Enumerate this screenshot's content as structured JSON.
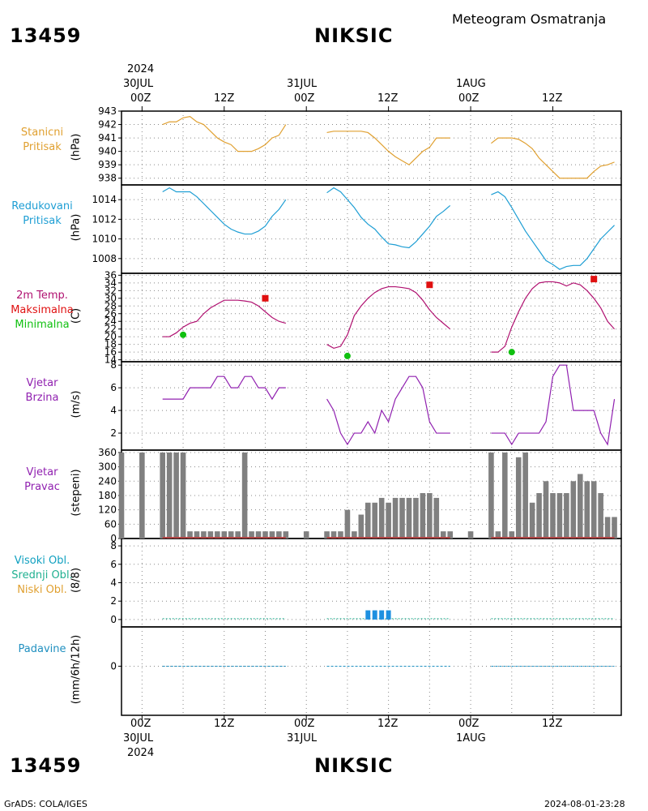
{
  "header": {
    "station_id": "13459",
    "station_name": "NIKSIC",
    "title": "Meteogram Osmatranja"
  },
  "footer": {
    "station_id": "13459",
    "station_name": "NIKSIC",
    "credit": "GrADS: COLA/IGES",
    "timestamp": "2024-08-01-23:28"
  },
  "time_axis": {
    "top_year": "2024",
    "bottom_year": "2024",
    "day_labels": [
      "30JUL",
      "31JUL",
      "1AUG"
    ],
    "hour_labels": [
      "00Z",
      "12Z",
      "00Z",
      "12Z",
      "00Z",
      "12Z"
    ],
    "x_range_hours": [
      -3,
      70
    ]
  },
  "colors": {
    "pressure_station": "#e0a030",
    "pressure_reduced": "#1e9ed4",
    "temperature": "#b01070",
    "tmax": "#e01010",
    "tmin": "#10c010",
    "wind": "#9020b0",
    "wind_dir_bar": "#808080",
    "wind_dir_base": "#c03030",
    "cloud_high": "#10a0c0",
    "cloud_mid": "#20b090",
    "cloud_low": "#e0a030",
    "cloud_bar": "#1e90e0",
    "precip": "#2090c0"
  },
  "panels": {
    "station_pressure": {
      "label1": "Stanicni",
      "label2": "Pritisak",
      "unit": "(hPa)"
    },
    "reduced_pressure": {
      "label1": "Redukovani",
      "label2": "Pritisak",
      "unit": "(hPa)"
    },
    "temperature": {
      "label1": "2m Temp.",
      "label2": "Maksimalna",
      "label3": "Minimalna",
      "unit": "(C)"
    },
    "wind_speed": {
      "label1": "Vjetar",
      "label2": "Brzina",
      "unit": "(m/s)"
    },
    "wind_direction": {
      "label1": "Vjetar",
      "label2": "Pravac",
      "unit": "(stepeni)"
    },
    "clouds": {
      "label1": "Visoki Obl.",
      "label2": "Srednji Obl.",
      "label3": "Niski Obl.",
      "unit": "(8/8)"
    },
    "precip": {
      "label1": "Padavine",
      "unit": "(mm/6h/12h)"
    }
  },
  "chart_data": [
    {
      "type": "line",
      "name": "station_pressure",
      "ylim": [
        937.5,
        943
      ],
      "yticks": [
        938,
        939,
        940,
        941,
        942,
        943
      ],
      "segments": [
        {
          "x": [
            3,
            4,
            5,
            6,
            7,
            8,
            9,
            10,
            11,
            12,
            13,
            14,
            15,
            16,
            17,
            18,
            19,
            20,
            21
          ],
          "y": [
            942,
            942.2,
            942.2,
            942.5,
            942.6,
            942.2,
            942,
            941.5,
            941,
            940.7,
            940.5,
            940,
            940,
            940,
            940.2,
            940.5,
            941,
            941.2,
            942
          ]
        },
        {
          "x": [
            27,
            28,
            29,
            30,
            31,
            32,
            33,
            34,
            35,
            36,
            37,
            38,
            39,
            40,
            41,
            42,
            43,
            44,
            45
          ],
          "y": [
            941.4,
            941.5,
            941.5,
            941.5,
            941.5,
            941.5,
            941.4,
            941,
            940.5,
            940,
            939.6,
            939.3,
            939,
            939.5,
            940,
            940.3,
            941,
            941,
            941
          ]
        },
        {
          "x": [
            51,
            52,
            53,
            54,
            55,
            56,
            57,
            58,
            59,
            60,
            61,
            62,
            63,
            64,
            65,
            66,
            67,
            68,
            69
          ],
          "y": [
            940.6,
            941,
            941,
            941,
            940.9,
            940.6,
            940.2,
            939.5,
            939,
            938.5,
            938,
            938,
            938,
            938,
            938,
            938.5,
            938.9,
            939,
            939.2
          ]
        }
      ]
    },
    {
      "type": "line",
      "name": "reduced_pressure",
      "ylim": [
        1006.5,
        1015.5
      ],
      "yticks": [
        1008,
        1010,
        1012,
        1014
      ],
      "segments": [
        {
          "x": [
            3,
            4,
            5,
            6,
            7,
            8,
            9,
            10,
            11,
            12,
            13,
            14,
            15,
            16,
            17,
            18,
            19,
            20,
            21
          ],
          "y": [
            1014.8,
            1015.2,
            1014.8,
            1014.8,
            1014.8,
            1014.3,
            1013.6,
            1012.9,
            1012.2,
            1011.5,
            1011,
            1010.7,
            1010.5,
            1010.5,
            1010.8,
            1011.3,
            1012.3,
            1013,
            1014
          ]
        },
        {
          "x": [
            27,
            28,
            29,
            30,
            31,
            32,
            33,
            34,
            35,
            36,
            37,
            38,
            39,
            40,
            41,
            42,
            43,
            44,
            45
          ],
          "y": [
            1014.7,
            1015.2,
            1014.8,
            1014,
            1013.2,
            1012.2,
            1011.5,
            1011,
            1010.2,
            1009.5,
            1009.4,
            1009.2,
            1009.1,
            1009.7,
            1010.5,
            1011.3,
            1012.3,
            1012.8,
            1013.4
          ]
        },
        {
          "x": [
            51,
            52,
            53,
            54,
            55,
            56,
            57,
            58,
            59,
            60,
            61,
            62,
            63,
            64,
            65,
            66,
            67,
            68,
            69
          ],
          "y": [
            1014.5,
            1014.8,
            1014.3,
            1013.2,
            1012,
            1010.8,
            1009.8,
            1008.8,
            1007.8,
            1007.4,
            1006.9,
            1007.2,
            1007.3,
            1007.3,
            1008,
            1009,
            1010,
            1010.7,
            1011.4
          ]
        }
      ]
    },
    {
      "type": "line",
      "name": "temperature",
      "ylim": [
        13.5,
        36.5
      ],
      "yticks": [
        14,
        16,
        18,
        20,
        22,
        24,
        26,
        28,
        30,
        32,
        34,
        36
      ],
      "segments": [
        {
          "x": [
            3,
            4,
            5,
            6,
            7,
            8,
            9,
            10,
            11,
            12,
            13,
            14,
            15,
            16,
            17,
            18,
            19,
            20,
            21
          ],
          "y": [
            20,
            20,
            21,
            22.5,
            23.5,
            24,
            26,
            27.5,
            28.5,
            29.5,
            29.5,
            29.5,
            29.3,
            29,
            28,
            26.5,
            25,
            24,
            23.5
          ]
        },
        {
          "x": [
            27,
            28,
            29,
            30,
            31,
            32,
            33,
            34,
            35,
            36,
            37,
            38,
            39,
            40,
            41,
            42,
            43,
            44,
            45
          ],
          "y": [
            18,
            17,
            17.5,
            20.5,
            25.5,
            28,
            30,
            31.5,
            32.5,
            33,
            33,
            32.8,
            32.5,
            31.5,
            29.5,
            27,
            25,
            23.5,
            22
          ]
        },
        {
          "x": [
            51,
            52,
            53,
            54,
            55,
            56,
            57,
            58,
            59,
            60,
            61,
            62,
            63,
            64,
            65,
            66,
            67,
            68,
            69
          ],
          "y": [
            16,
            16,
            17.5,
            22.5,
            26.5,
            30,
            32.5,
            34,
            34.3,
            34.3,
            34,
            33.2,
            34,
            33.5,
            32,
            30,
            27.5,
            24,
            22
          ]
        }
      ],
      "tmax": {
        "x": [
          18,
          42,
          66
        ],
        "y": [
          30,
          33.5,
          35
        ]
      },
      "tmin": {
        "x": [
          6,
          30,
          54
        ],
        "y": [
          20.5,
          15,
          16
        ]
      }
    },
    {
      "type": "line",
      "name": "wind_speed",
      "ylim": [
        0.5,
        8.3
      ],
      "yticks": [
        2,
        4,
        6,
        8
      ],
      "segments": [
        {
          "x": [
            3,
            4,
            5,
            6,
            7,
            8,
            9,
            10,
            11,
            12,
            13,
            14,
            15,
            16,
            17,
            18,
            19,
            20,
            21
          ],
          "y": [
            5,
            5,
            5,
            5,
            6,
            6,
            6,
            6,
            7,
            7,
            6,
            6,
            7,
            7,
            6,
            6,
            5,
            6,
            6
          ]
        },
        {
          "x": [
            27,
            28,
            29,
            30,
            31,
            32,
            33,
            34,
            35,
            36,
            37,
            38,
            39,
            40,
            41,
            42,
            43,
            44,
            45
          ],
          "y": [
            5,
            4,
            2,
            1,
            2,
            2,
            3,
            2,
            4,
            3,
            5,
            6,
            7,
            7,
            6,
            3,
            2,
            2,
            2
          ]
        },
        {
          "x": [
            51,
            52,
            53,
            54,
            55,
            56,
            57,
            58,
            59,
            60,
            61,
            62,
            63,
            64,
            65,
            66,
            67,
            68,
            69
          ],
          "y": [
            2,
            2,
            2,
            1,
            2,
            2,
            2,
            2,
            3,
            7,
            8,
            8,
            4,
            4,
            4,
            4,
            2,
            1,
            5
          ]
        }
      ]
    },
    {
      "type": "bar",
      "name": "wind_direction",
      "ylim": [
        0,
        370
      ],
      "yticks": [
        0,
        60,
        120,
        180,
        240,
        300,
        360
      ],
      "x": [
        -3,
        0,
        3,
        4,
        5,
        6,
        7,
        8,
        9,
        10,
        11,
        12,
        13,
        14,
        15,
        16,
        17,
        18,
        19,
        20,
        21,
        24,
        27,
        28,
        29,
        30,
        31,
        32,
        33,
        34,
        35,
        36,
        37,
        38,
        39,
        40,
        41,
        42,
        43,
        44,
        45,
        48,
        51,
        52,
        53,
        54,
        55,
        56,
        57,
        58,
        59,
        60,
        61,
        62,
        63,
        64,
        65,
        66,
        67,
        68,
        69
      ],
      "values": [
        360,
        360,
        360,
        360,
        360,
        360,
        30,
        30,
        30,
        30,
        30,
        30,
        30,
        30,
        360,
        30,
        30,
        30,
        30,
        30,
        30,
        30,
        30,
        30,
        30,
        120,
        30,
        100,
        150,
        150,
        170,
        150,
        170,
        170,
        170,
        170,
        190,
        190,
        170,
        30,
        30,
        30,
        360,
        30,
        360,
        30,
        340,
        360,
        150,
        190,
        240,
        190,
        190,
        190,
        240,
        270,
        240,
        240,
        190,
        90,
        90
      ]
    },
    {
      "type": "bar",
      "name": "clouds",
      "ylim": [
        -0.8,
        8.8
      ],
      "yticks": [
        0,
        2,
        4,
        6,
        8
      ],
      "x": [
        33,
        34,
        35,
        36
      ],
      "values": [
        1,
        1,
        1,
        1
      ]
    },
    {
      "type": "line",
      "name": "precip",
      "ylim": [
        -5,
        4
      ],
      "yticks": [
        0
      ],
      "x": [
        3,
        21,
        27,
        45,
        51,
        69
      ],
      "values": [
        0,
        0,
        0,
        0,
        0,
        0
      ]
    }
  ]
}
